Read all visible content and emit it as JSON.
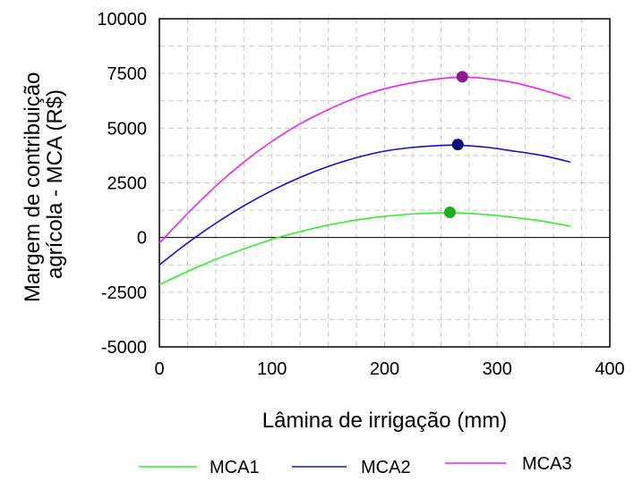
{
  "chart_data": {
    "type": "line",
    "xlabel": "Lâmina de irrigação (mm)",
    "ylabel_lines": [
      "Margem de contribuição",
      "agrícola - MCA (R$)"
    ],
    "xlim": [
      0,
      400
    ],
    "ylim": [
      -5000,
      10000
    ],
    "x_ticks": [
      0,
      100,
      200,
      300,
      400
    ],
    "y_ticks": [
      -5000,
      -2500,
      0,
      2500,
      5000,
      7500,
      10000
    ],
    "grid": true,
    "legend_position": "bottom",
    "series": [
      {
        "name": "MCA1",
        "color": "#33ee33",
        "x": [
          0,
          25,
          50,
          75,
          100,
          125,
          150,
          175,
          200,
          225,
          250,
          265,
          290,
          315,
          340,
          365
        ],
        "y": [
          -2150,
          -1550,
          -1000,
          -520,
          -80,
          270,
          570,
          800,
          970,
          1080,
          1130,
          1130,
          1050,
          920,
          750,
          520
        ],
        "marker": {
          "x": 258,
          "y": 1150,
          "color": "#22aa22"
        }
      },
      {
        "name": "MCA2",
        "color": "#1010cc",
        "x": [
          0,
          25,
          50,
          75,
          100,
          125,
          150,
          175,
          200,
          225,
          250,
          265,
          290,
          315,
          340,
          365
        ],
        "y": [
          -1250,
          -250,
          650,
          1450,
          2150,
          2750,
          3250,
          3650,
          3950,
          4120,
          4210,
          4220,
          4130,
          3950,
          3750,
          3450
        ],
        "marker": {
          "x": 265,
          "y": 4250,
          "color": "#0b0b77"
        }
      },
      {
        "name": "MCA3",
        "color": "#ee22ee",
        "x": [
          0,
          25,
          50,
          75,
          100,
          125,
          150,
          175,
          200,
          225,
          250,
          270,
          290,
          315,
          340,
          365
        ],
        "y": [
          -250,
          1100,
          2350,
          3450,
          4400,
          5200,
          5850,
          6400,
          6800,
          7080,
          7270,
          7330,
          7270,
          7080,
          6750,
          6350
        ],
        "marker": {
          "x": 269,
          "y": 7350,
          "color": "#8b1a8b"
        }
      }
    ]
  }
}
